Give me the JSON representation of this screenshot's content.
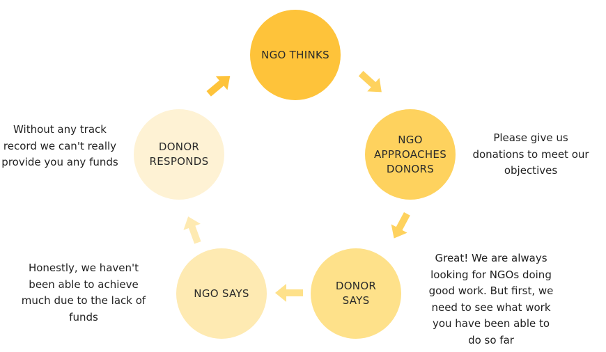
{
  "nodes": {
    "ngo_thinks": "NGO THINKS",
    "ngo_approaches": "NGO APPROACHES DONORS",
    "donor_says": "DONOR SAYS",
    "ngo_says": "NGO SAYS",
    "donor_responds": "DONOR RESPONDS"
  },
  "notes": {
    "approaches": "Please give us donations to meet our objectives",
    "donor_says": "Great! We are always looking for NGOs doing good work. But first, we need to see what work you have been able to do so far",
    "ngo_says": "Honestly, we haven't been able to achieve much due to the lack of funds",
    "donor_responds": "Without any track record we can't really provide you any funds"
  },
  "colors": {
    "ngo_thinks": "#fec33a",
    "ngo_approaches": "#fed25e",
    "donor_says": "#fee18a",
    "ngo_says": "#feeab2",
    "donor_responds": "#fef2d4",
    "arrow_1": "#fed25e",
    "arrow_2": "#fed25e",
    "arrow_3": "#fee18a",
    "arrow_4": "#feeab2",
    "arrow_5": "#fec33a"
  }
}
